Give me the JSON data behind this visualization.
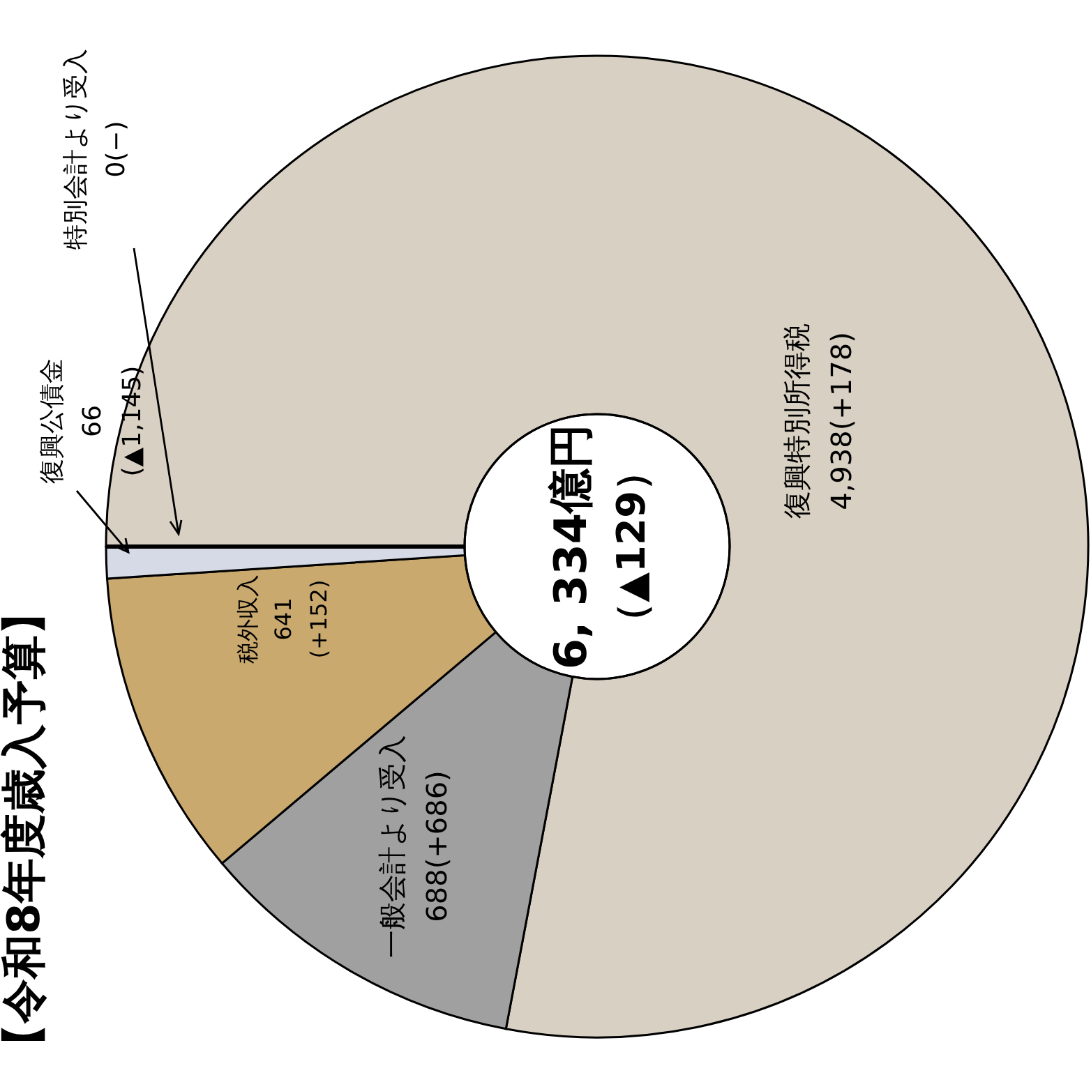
{
  "chart_data": {
    "type": "donut",
    "title": "【令和8年度歳入予算】",
    "categories": [
      "復興特別所得税",
      "一般会計より受入",
      "税外収入",
      "復興公債金",
      "特別会計より受入"
    ],
    "values": [
      4938,
      688,
      641,
      66,
      0
    ],
    "colors": [
      "#d8d0c2",
      "#a0a0a0",
      "#c9a96e",
      "#d6dae6",
      "#ffffff"
    ],
    "value_labels": [
      "4,938(+178)",
      "688(+686)",
      "641\n(+152)",
      "66\n(▲1,145)",
      "0(−)"
    ],
    "annotations": [
      "6, 334億円",
      "（▲129）"
    ]
  }
}
